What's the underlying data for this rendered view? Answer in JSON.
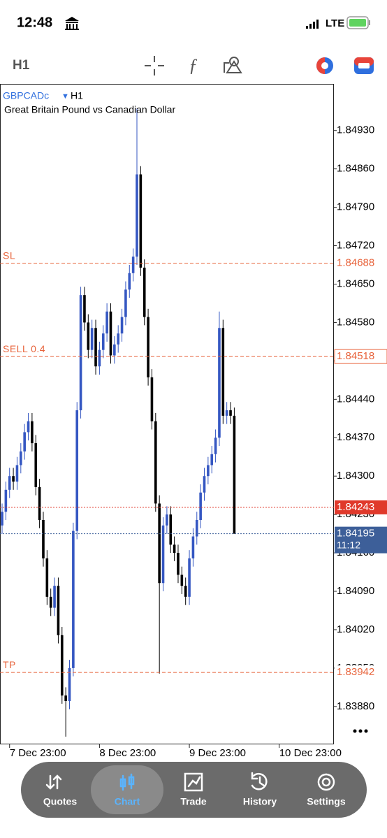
{
  "status_bar": {
    "time": "12:48",
    "network": "LTE"
  },
  "toolbar": {
    "timeframe": "H1"
  },
  "chart_data": {
    "type": "candlestick",
    "symbol": "GBPCADc",
    "timeframe": "H1",
    "subtitle": "Great Britain Pound vs Canadian Dollar",
    "up_color": "#3557c2",
    "down_color": "#000000",
    "xlim": [
      -0.56,
      88.6
    ],
    "xticks": [
      {
        "value": 2,
        "label": "7 Dec 23:00"
      },
      {
        "value": 26,
        "label": "8 Dec 23:00"
      },
      {
        "value": 50,
        "label": "9 Dec 23:00"
      },
      {
        "value": 74,
        "label": "10 Dec 23:00"
      }
    ],
    "ylim": [
      1.83811,
      1.85015
    ],
    "yticks": [
      {
        "value": 1.8493,
        "label": "1.84930"
      },
      {
        "value": 1.8486,
        "label": "1.84860"
      },
      {
        "value": 1.8479,
        "label": "1.84790"
      },
      {
        "value": 1.8472,
        "label": "1.84720"
      },
      {
        "value": 1.8465,
        "label": "1.84650"
      },
      {
        "value": 1.8458,
        "label": "1.84580"
      },
      {
        "value": 1.8451,
        "label": "1.84510"
      },
      {
        "value": 1.8444,
        "label": "1.84440"
      },
      {
        "value": 1.8437,
        "label": "1.84370"
      },
      {
        "value": 1.843,
        "label": "1.84300"
      },
      {
        "value": 1.8423,
        "label": "1.84230"
      },
      {
        "value": 1.8416,
        "label": "1.84160"
      },
      {
        "value": 1.8409,
        "label": "1.84090"
      },
      {
        "value": 1.8402,
        "label": "1.84020"
      },
      {
        "value": 1.8395,
        "label": "1.83950"
      },
      {
        "value": 1.8388,
        "label": "1.83880"
      }
    ],
    "open": [
      1.8421,
      1.84235,
      1.84275,
      1.843,
      1.8429,
      1.8432,
      1.84345,
      1.8438,
      1.844,
      1.8436,
      1.8428,
      1.8422,
      1.8415,
      1.8408,
      1.8406,
      1.841,
      1.8401,
      1.839,
      1.8389,
      1.8395,
      1.842,
      1.8442,
      1.8463,
      1.8458,
      1.8453,
      1.8457,
      1.845,
      1.8453,
      1.8456,
      1.846,
      1.8452,
      1.8454,
      1.8456,
      1.8459,
      1.8464,
      1.8467,
      1.847,
      1.8485,
      1.8468,
      1.8459,
      1.8448,
      1.844,
      1.8425,
      1.84105,
      1.8421,
      1.8423,
      1.84175,
      1.8416,
      1.8412,
      1.841,
      1.8408,
      1.8415,
      1.8419,
      1.8422,
      1.8427,
      1.843,
      1.8432,
      1.8434,
      1.8437,
      1.8457,
      1.8441,
      1.8442,
      1.8441
    ],
    "high": [
      1.8425,
      1.8429,
      1.84315,
      1.84315,
      1.84335,
      1.8436,
      1.84395,
      1.84415,
      1.84415,
      1.84375,
      1.84295,
      1.84235,
      1.84165,
      1.84095,
      1.84115,
      1.84115,
      1.84025,
      1.83915,
      1.83965,
      1.84215,
      1.84435,
      1.84645,
      1.84645,
      1.84595,
      1.84585,
      1.84585,
      1.84545,
      1.84575,
      1.84615,
      1.84615,
      1.84555,
      1.84575,
      1.84605,
      1.84655,
      1.84685,
      1.84715,
      1.8497,
      1.84865,
      1.84695,
      1.84605,
      1.84495,
      1.84415,
      1.84265,
      1.84225,
      1.84245,
      1.84245,
      1.8419,
      1.84175,
      1.84135,
      1.84115,
      1.84165,
      1.84205,
      1.84235,
      1.84285,
      1.84315,
      1.84335,
      1.84355,
      1.84385,
      1.846,
      1.84585,
      1.84435,
      1.84435,
      1.84425
    ],
    "low": [
      1.84195,
      1.8422,
      1.8426,
      1.84275,
      1.84275,
      1.84305,
      1.8433,
      1.84365,
      1.84345,
      1.84265,
      1.84205,
      1.84135,
      1.84065,
      1.84045,
      1.84045,
      1.83995,
      1.83885,
      1.83825,
      1.83875,
      1.83935,
      1.84185,
      1.84405,
      1.84565,
      1.84515,
      1.84515,
      1.84485,
      1.84485,
      1.84515,
      1.84545,
      1.84505,
      1.84505,
      1.84525,
      1.84545,
      1.84575,
      1.84625,
      1.84655,
      1.84685,
      1.84665,
      1.84575,
      1.84465,
      1.84385,
      1.84235,
      1.8394,
      1.8409,
      1.84195,
      1.8416,
      1.84145,
      1.84105,
      1.84085,
      1.84065,
      1.84065,
      1.84135,
      1.84175,
      1.84205,
      1.84255,
      1.84285,
      1.84305,
      1.84325,
      1.84355,
      1.84395,
      1.84395,
      1.84395,
      1.84195
    ],
    "close": [
      1.84235,
      1.84275,
      1.843,
      1.8429,
      1.8432,
      1.84345,
      1.8438,
      1.844,
      1.8436,
      1.8428,
      1.8422,
      1.8415,
      1.8408,
      1.8406,
      1.841,
      1.8401,
      1.839,
      1.8389,
      1.8395,
      1.842,
      1.8442,
      1.8463,
      1.8458,
      1.8453,
      1.8457,
      1.845,
      1.8453,
      1.8456,
      1.846,
      1.8452,
      1.8454,
      1.8456,
      1.8459,
      1.8464,
      1.8467,
      1.847,
      1.8485,
      1.8468,
      1.8459,
      1.8448,
      1.844,
      1.8425,
      1.84105,
      1.8421,
      1.8423,
      1.84175,
      1.8416,
      1.8412,
      1.841,
      1.8408,
      1.8415,
      1.8419,
      1.8422,
      1.8427,
      1.843,
      1.8432,
      1.8434,
      1.8437,
      1.8457,
      1.8441,
      1.8442,
      1.8441,
      1.84195
    ],
    "levels": [
      {
        "label": "SL",
        "value": 1.84688,
        "color": "#e8643c",
        "box": "none"
      },
      {
        "label": "SELL 0.4",
        "value": 1.84518,
        "color": "#e8643c",
        "box": "outlined"
      },
      {
        "label": "TP",
        "value": 1.83942,
        "color": "#e8643c",
        "box": "none"
      },
      {
        "value": 1.84243,
        "color": "#e0392b",
        "box": "filled"
      },
      {
        "value": 1.84195,
        "color": "#3d5f99",
        "box": "filled",
        "time": "11:12"
      }
    ]
  },
  "tab_bar": {
    "tabs": [
      "Quotes",
      "Chart",
      "Trade",
      "History",
      "Settings"
    ],
    "active": 1
  }
}
